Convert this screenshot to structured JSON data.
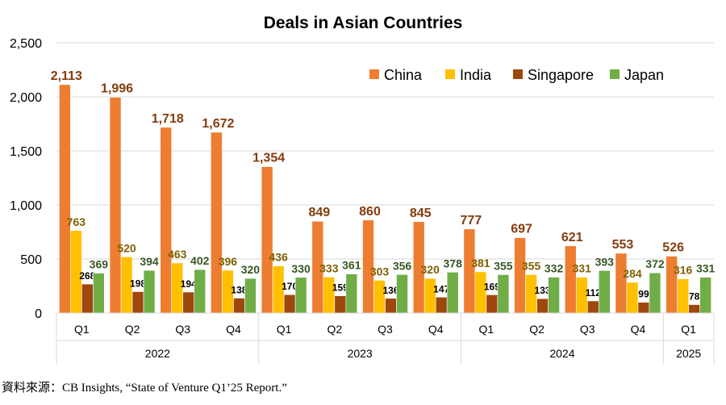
{
  "chart_data": {
    "type": "bar",
    "title": "Deals in Asian Countries",
    "xlabel": "",
    "ylabel": "",
    "ylim": [
      0,
      2500
    ],
    "yticks": [
      "0",
      "500",
      "1,000",
      "1,500",
      "2,000",
      "2,500"
    ],
    "ytick_values": [
      0,
      500,
      1000,
      1500,
      2000,
      2500
    ],
    "grid": true,
    "legend_position": "top-right",
    "categories": [
      "Q1",
      "Q2",
      "Q3",
      "Q4",
      "Q1",
      "Q2",
      "Q3",
      "Q4",
      "Q1",
      "Q2",
      "Q3",
      "Q4",
      "Q1"
    ],
    "years": [
      {
        "label": "2022",
        "quarters": 4
      },
      {
        "label": "2023",
        "quarters": 4
      },
      {
        "label": "2024",
        "quarters": 4
      },
      {
        "label": "2025",
        "quarters": 1
      }
    ],
    "series": [
      {
        "name": "China",
        "color": "#ED7D31",
        "label_color": "#843C0C",
        "values": [
          2113,
          1996,
          1718,
          1672,
          1354,
          849,
          860,
          845,
          777,
          697,
          621,
          553,
          526
        ],
        "labels": [
          "2,113",
          "1,996",
          "1,718",
          "1,672",
          "1,354",
          "849",
          "860",
          "845",
          "777",
          "697",
          "621",
          "553",
          "526"
        ]
      },
      {
        "name": "India",
        "color": "#FFC000",
        "label_color": "#7F6000",
        "values": [
          763,
          520,
          463,
          396,
          436,
          333,
          303,
          320,
          381,
          355,
          331,
          284,
          316
        ],
        "labels": [
          "763",
          "520",
          "463",
          "396",
          "436",
          "333",
          "303",
          "320",
          "381",
          "355",
          "331",
          "284",
          "316"
        ]
      },
      {
        "name": "Singapore",
        "color": "#9E480E",
        "label_color": "#000000",
        "values": [
          268,
          198,
          194,
          138,
          170,
          159,
          136,
          147,
          169,
          133,
          112,
          99,
          78
        ],
        "labels": [
          "268",
          "198",
          "194",
          "138",
          "170",
          "159",
          "136",
          "147",
          "169",
          "133",
          "112",
          "99",
          "78"
        ]
      },
      {
        "name": "Japan",
        "color": "#70AD47",
        "label_color": "#375623",
        "values": [
          369,
          394,
          402,
          320,
          330,
          361,
          356,
          378,
          355,
          332,
          393,
          372,
          331
        ],
        "labels": [
          "369",
          "394",
          "402",
          "320",
          "330",
          "361",
          "356",
          "378",
          "355",
          "332",
          "393",
          "372",
          "331"
        ]
      }
    ]
  },
  "source": "資料來源：CB Insights, “State of Venture Q1’25 Report.”"
}
